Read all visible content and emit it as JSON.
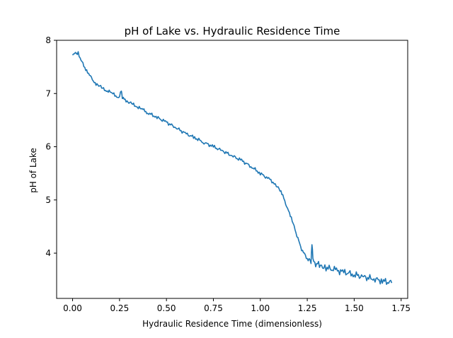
{
  "chart_data": {
    "type": "line",
    "title": "pH of Lake vs. Hydraulic Residence Time",
    "xlabel": "Hydraulic Residence Time (dimensionless)",
    "ylabel": "pH of Lake",
    "xlim": [
      -0.085,
      1.785
    ],
    "ylim": [
      3.15,
      8.0
    ],
    "xticks": [
      0.0,
      0.25,
      0.5,
      0.75,
      1.0,
      1.25,
      1.5,
      1.75
    ],
    "xtick_labels": [
      "0.00",
      "0.25",
      "0.50",
      "0.75",
      "1.00",
      "1.25",
      "1.50",
      "1.75"
    ],
    "yticks": [
      4,
      5,
      6,
      7,
      8
    ],
    "ytick_labels": [
      "4",
      "5",
      "6",
      "7",
      "8"
    ],
    "grid": false,
    "legend": "none",
    "line_color": "#1f77b4",
    "series": [
      {
        "x": [
          0.0,
          0.01,
          0.02,
          0.025,
          0.03,
          0.04,
          0.05,
          0.06,
          0.08,
          0.1,
          0.12,
          0.14,
          0.16,
          0.18,
          0.2,
          0.22,
          0.24,
          0.25,
          0.26,
          0.265,
          0.27,
          0.28,
          0.3,
          0.32,
          0.34,
          0.36,
          0.38,
          0.4,
          0.45,
          0.5,
          0.55,
          0.6,
          0.65,
          0.7,
          0.75,
          0.8,
          0.85,
          0.9,
          0.95,
          1.0,
          1.05,
          1.08,
          1.1,
          1.12,
          1.14,
          1.16,
          1.18,
          1.19,
          1.2,
          1.21,
          1.22,
          1.23,
          1.24,
          1.25,
          1.26,
          1.27,
          1.275,
          1.28,
          1.29,
          1.3,
          1.32,
          1.35,
          1.4,
          1.45,
          1.5,
          1.55,
          1.6,
          1.65,
          1.7
        ],
        "y": [
          7.72,
          7.75,
          7.78,
          7.72,
          7.76,
          7.68,
          7.6,
          7.52,
          7.4,
          7.28,
          7.2,
          7.15,
          7.1,
          7.06,
          7.02,
          6.98,
          6.94,
          6.95,
          7.05,
          6.92,
          6.9,
          6.88,
          6.84,
          6.8,
          6.76,
          6.72,
          6.68,
          6.64,
          6.55,
          6.46,
          6.36,
          6.25,
          6.17,
          6.08,
          6.0,
          5.92,
          5.83,
          5.74,
          5.63,
          5.5,
          5.38,
          5.3,
          5.2,
          5.08,
          4.9,
          4.7,
          4.5,
          4.38,
          4.28,
          4.18,
          4.08,
          4.0,
          3.95,
          3.9,
          3.87,
          3.85,
          4.2,
          3.85,
          3.82,
          3.8,
          3.77,
          3.73,
          3.68,
          3.64,
          3.6,
          3.55,
          3.52,
          3.48,
          3.44
        ]
      }
    ]
  }
}
